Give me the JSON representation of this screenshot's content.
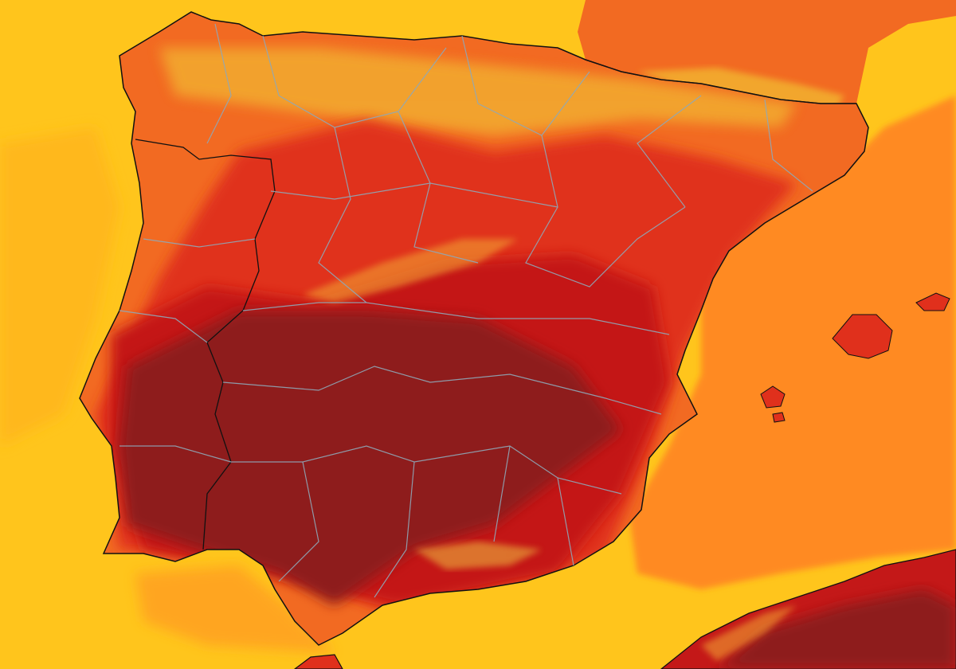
{
  "map": {
    "type": "temperature-heatmap",
    "colors": {
      "sea_warm": "#FFC51C",
      "sea_hot": "#FF8A20",
      "land_orange": "#F26A22",
      "land_red": "#E0301C",
      "land_deep_red": "#C41818",
      "land_darkest": "#8E1E1E",
      "mountain_highlight": "#F2C030",
      "country_border": "#111111",
      "province_border": "#8FA8B8"
    }
  }
}
